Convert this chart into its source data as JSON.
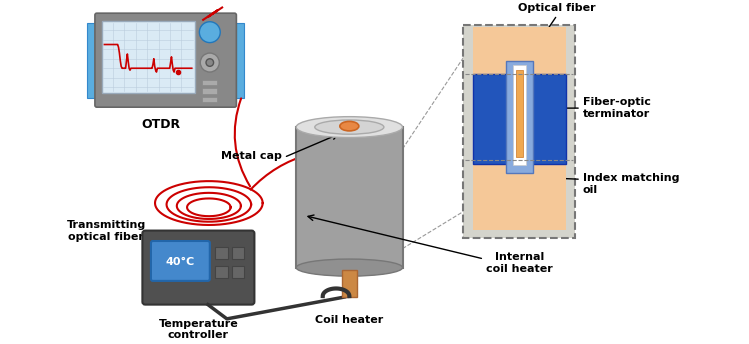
{
  "labels": {
    "otdr": "OTDR",
    "transmitting": "Transmitting\noptical fiber",
    "metal_cap": "Metal cap",
    "coil_heater": "Coil heater",
    "temperature": "Temperature\ncontroller",
    "optical_fiber": "Optical fiber",
    "fiber_optic": "Fiber-optic\nterminator",
    "index_matching": "Index matching\noil",
    "internal_coil": "Internal\ncoil heater"
  },
  "colors": {
    "bg_color": "#ffffff",
    "otdr_body": "#5aaddf",
    "otdr_screen_bg": "#daeaf5",
    "otdr_screen_line": "#cc0000",
    "heater_gray": "#a0a0a0",
    "heater_cap_light": "#e0e0e0",
    "heater_top_ellipse": "#cccccc",
    "coil_stem": "#cc8844",
    "fiber_term_outer": "#d4d4cc",
    "fiber_term_orange": "#f0a850",
    "fiber_term_blue": "#2255bb",
    "fiber_term_light_blue": "#88aadd",
    "index_oil_color": "#f5c898",
    "red_fiber": "#cc0000",
    "temp_body": "#505050",
    "temp_display_bg": "#4488cc",
    "temp_text_color": "#ffffff"
  }
}
